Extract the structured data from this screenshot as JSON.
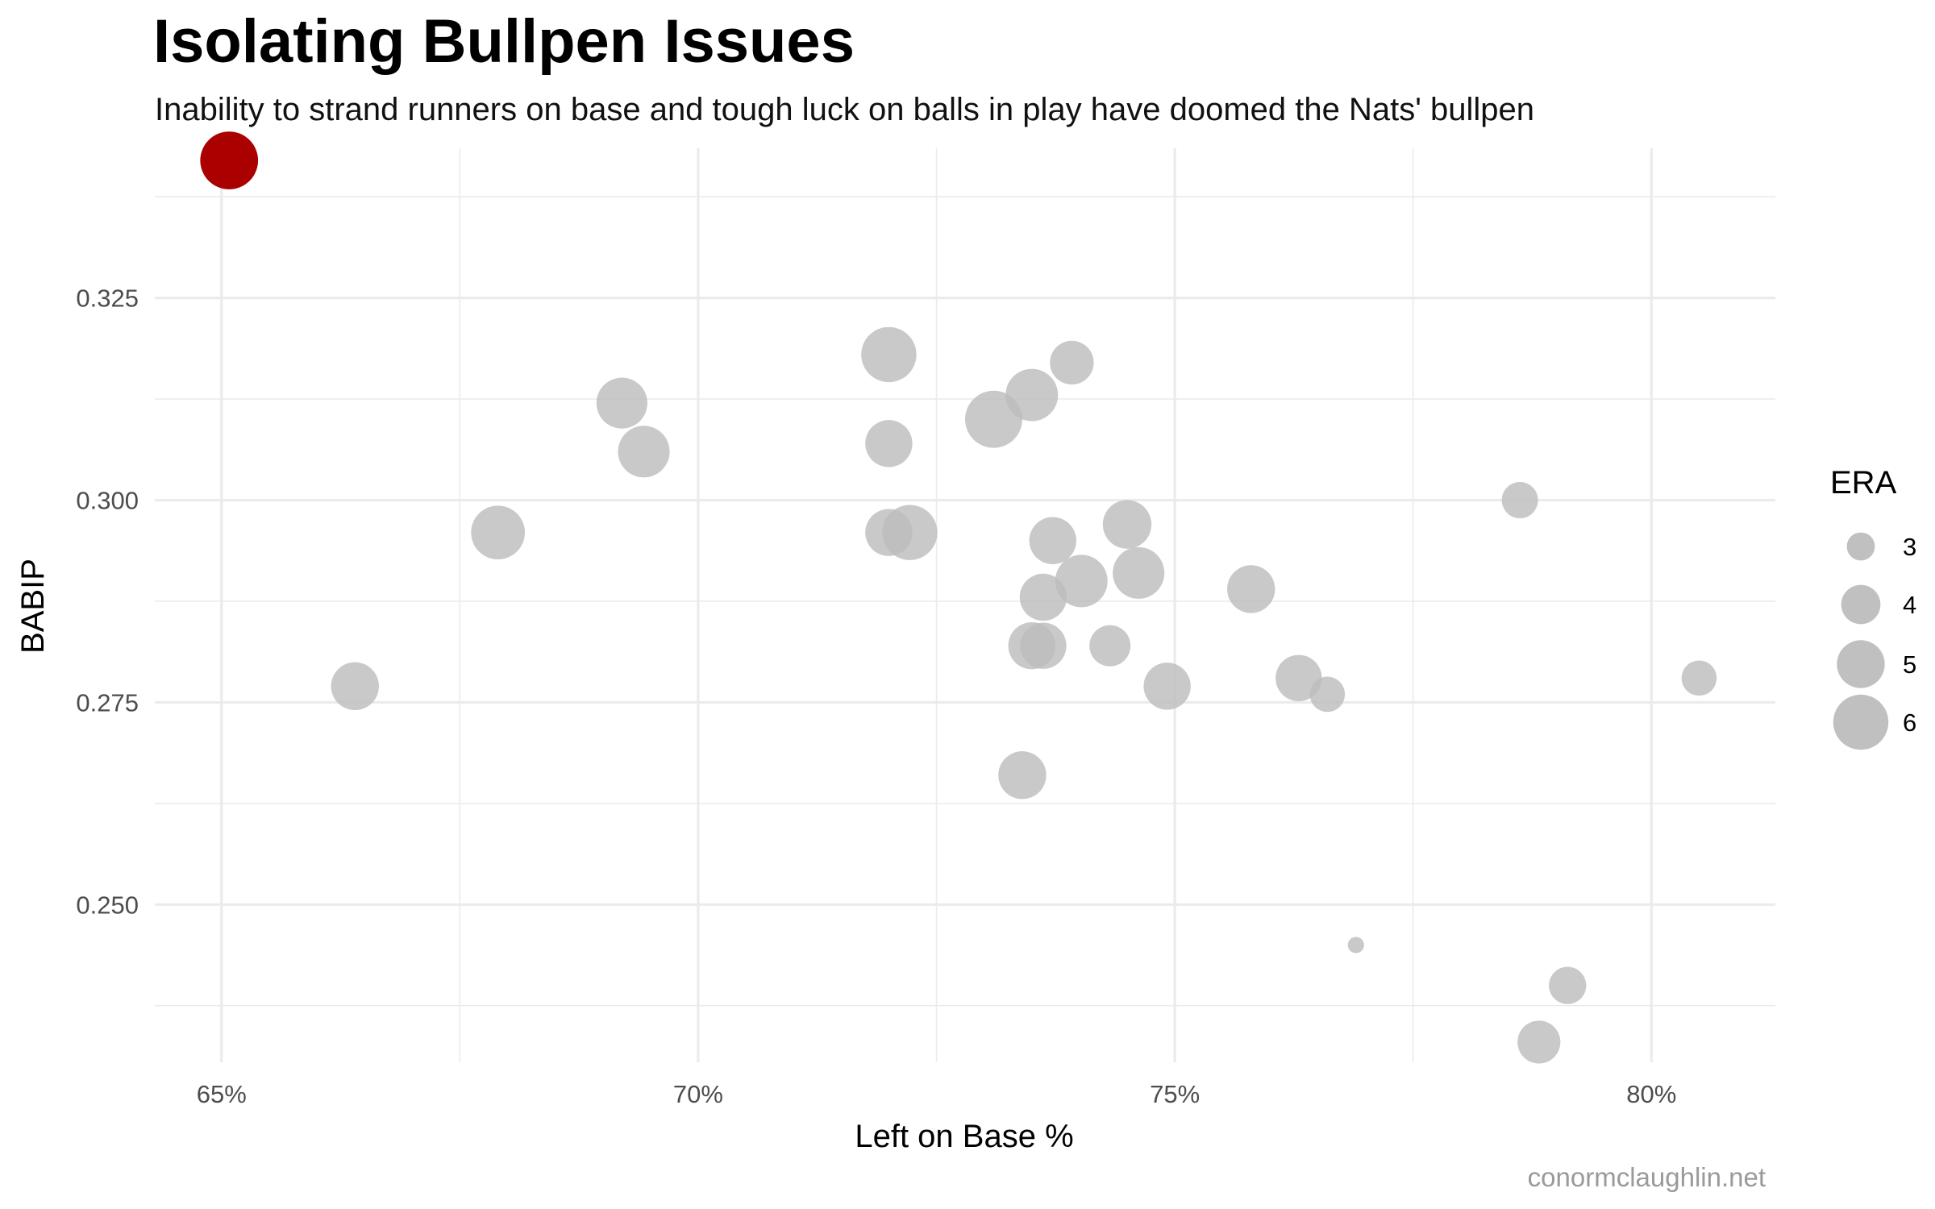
{
  "chart_data": {
    "type": "scatter",
    "title": "Isolating Bullpen Issues",
    "subtitle": "Inability to strand runners on base and tough luck on balls in play have doomed the Nats' bullpen",
    "caption": "conormclaughlin.net",
    "xlabel": "Left on Base %",
    "ylabel": "BABIP",
    "xlim": [
      0.643,
      0.813
    ],
    "ylim": [
      0.2305,
      0.3435
    ],
    "x_ticks": [
      0.65,
      0.7,
      0.75,
      0.8
    ],
    "x_tick_labels": [
      "65%",
      "70%",
      "75%",
      "80%"
    ],
    "y_ticks": [
      0.25,
      0.275,
      0.3,
      0.325
    ],
    "y_tick_labels": [
      "0.250",
      "0.275",
      "0.300",
      "0.325"
    ],
    "grid": true,
    "legend": {
      "title": "ERA",
      "placement": "right",
      "values": [
        3,
        4,
        5,
        6
      ],
      "labels": [
        "3",
        "4",
        "5",
        "6"
      ]
    },
    "colors": {
      "highlight": "#aa0000",
      "point": "#bdbdbd",
      "grid": "#ebebeb",
      "caption": "#9a9a9a"
    },
    "points": [
      {
        "x": 0.6508,
        "y": 0.342,
        "era": 6.4,
        "highlight": true
      },
      {
        "x": 0.664,
        "y": 0.277,
        "era": 5.0
      },
      {
        "x": 0.679,
        "y": 0.296,
        "era": 5.8
      },
      {
        "x": 0.692,
        "y": 0.312,
        "era": 5.4
      },
      {
        "x": 0.6943,
        "y": 0.306,
        "era": 5.5
      },
      {
        "x": 0.72,
        "y": 0.318,
        "era": 6.0
      },
      {
        "x": 0.72,
        "y": 0.307,
        "era": 4.9
      },
      {
        "x": 0.72,
        "y": 0.296,
        "era": 4.9
      },
      {
        "x": 0.7222,
        "y": 0.296,
        "era": 6.0
      },
      {
        "x": 0.731,
        "y": 0.31,
        "era": 6.3
      },
      {
        "x": 0.735,
        "y": 0.313,
        "era": 5.6
      },
      {
        "x": 0.7392,
        "y": 0.317,
        "era": 4.5
      },
      {
        "x": 0.7372,
        "y": 0.295,
        "era": 4.9
      },
      {
        "x": 0.7402,
        "y": 0.29,
        "era": 5.6
      },
      {
        "x": 0.7362,
        "y": 0.288,
        "era": 4.9
      },
      {
        "x": 0.735,
        "y": 0.282,
        "era": 4.9
      },
      {
        "x": 0.7362,
        "y": 0.282,
        "era": 4.8
      },
      {
        "x": 0.7432,
        "y": 0.282,
        "era": 4.2
      },
      {
        "x": 0.734,
        "y": 0.266,
        "era": 5.0
      },
      {
        "x": 0.745,
        "y": 0.297,
        "era": 5.1
      },
      {
        "x": 0.7462,
        "y": 0.291,
        "era": 5.5
      },
      {
        "x": 0.7492,
        "y": 0.277,
        "era": 4.9
      },
      {
        "x": 0.758,
        "y": 0.289,
        "era": 5.0
      },
      {
        "x": 0.763,
        "y": 0.278,
        "era": 4.8
      },
      {
        "x": 0.766,
        "y": 0.276,
        "era": 3.6
      },
      {
        "x": 0.769,
        "y": 0.245,
        "era": 2.3
      },
      {
        "x": 0.7862,
        "y": 0.3,
        "era": 3.7
      },
      {
        "x": 0.7882,
        "y": 0.233,
        "era": 4.4
      },
      {
        "x": 0.7912,
        "y": 0.24,
        "era": 3.8
      },
      {
        "x": 0.805,
        "y": 0.278,
        "era": 3.6
      }
    ]
  }
}
